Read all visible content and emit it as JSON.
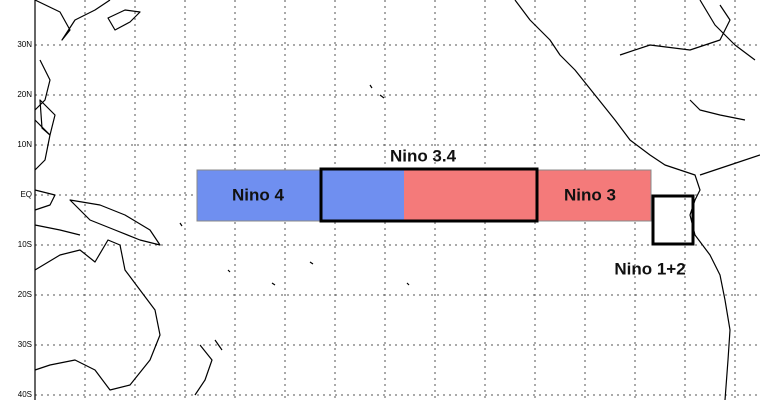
{
  "latitude_labels": [
    "30N",
    "20N",
    "10N",
    "EQ",
    "10S",
    "20S",
    "30S",
    "40S"
  ],
  "regions": [
    {
      "label": "Nino 4"
    },
    {
      "label": "Nino 3.4"
    },
    {
      "label": "Nino 3"
    },
    {
      "label": "Nino 1+2"
    }
  ]
}
